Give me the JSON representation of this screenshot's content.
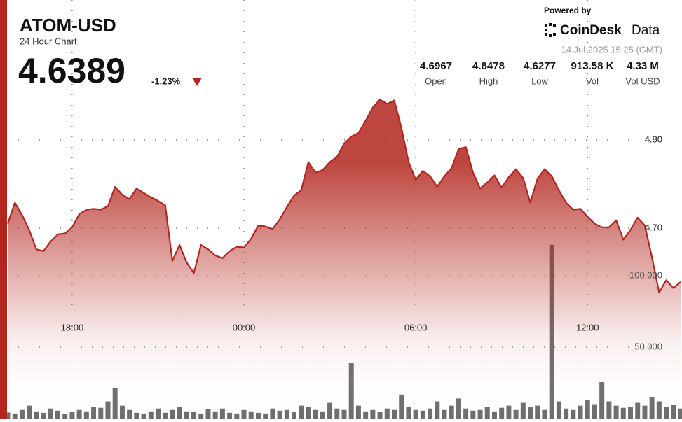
{
  "header": {
    "title": "ATOM-USD",
    "subtitle": "24 Hour Chart",
    "price": "4.6389",
    "change": "-1.23%",
    "powered": "Powered by",
    "brand": "CoinDesk",
    "brand_suffix": "Data",
    "timestamp": "14 Jul 2025 15:25 (GMT)"
  },
  "stats": [
    {
      "value": "4.6967",
      "label": "Open"
    },
    {
      "value": "4.8478",
      "label": "High"
    },
    {
      "value": "4.6277",
      "label": "Low"
    },
    {
      "value": "913.58 K",
      "label": "Vol"
    },
    {
      "value": "4.33 M",
      "label": "Vol USD"
    }
  ],
  "chart_data": {
    "type": "line",
    "x": [
      "15:45",
      "16:00",
      "16:15",
      "16:30",
      "16:45",
      "17:00",
      "17:15",
      "17:30",
      "17:45",
      "18:00",
      "18:15",
      "18:30",
      "18:45",
      "19:00",
      "19:15",
      "19:30",
      "19:45",
      "20:00",
      "20:15",
      "20:30",
      "20:45",
      "21:00",
      "21:15",
      "21:30",
      "21:45",
      "22:00",
      "22:15",
      "22:30",
      "22:45",
      "23:00",
      "23:15",
      "23:30",
      "23:45",
      "00:00",
      "00:15",
      "00:30",
      "00:45",
      "01:00",
      "01:15",
      "01:30",
      "01:45",
      "02:00",
      "02:15",
      "02:30",
      "02:45",
      "03:00",
      "03:15",
      "03:30",
      "03:45",
      "04:00",
      "04:15",
      "04:30",
      "04:45",
      "05:00",
      "05:15",
      "05:30",
      "05:45",
      "06:00",
      "06:15",
      "06:30",
      "06:45",
      "07:00",
      "07:15",
      "07:30",
      "07:45",
      "08:00",
      "08:15",
      "08:30",
      "08:45",
      "09:00",
      "09:15",
      "09:30",
      "09:45",
      "10:00",
      "10:15",
      "10:30",
      "10:45",
      "11:00",
      "11:15",
      "11:30",
      "11:45",
      "12:00",
      "12:15",
      "12:30",
      "12:45",
      "13:00",
      "13:15",
      "13:30",
      "13:45",
      "14:00",
      "14:15",
      "14:30",
      "14:45",
      "15:00",
      "15:15"
    ],
    "xticks": [
      "18:00",
      "00:00",
      "06:00",
      "12:00"
    ],
    "series": [
      {
        "type": "line",
        "color": "#b3261e",
        "values": [
          4.705,
          4.729,
          4.715,
          4.698,
          4.676,
          4.674,
          4.685,
          4.693,
          4.694,
          4.701,
          4.716,
          4.721,
          4.722,
          4.721,
          4.725,
          4.747,
          4.738,
          4.733,
          4.745,
          4.74,
          4.735,
          4.731,
          4.726,
          4.663,
          4.681,
          4.661,
          4.649,
          4.681,
          4.676,
          4.669,
          4.666,
          4.674,
          4.679,
          4.678,
          4.688,
          4.703,
          4.702,
          4.699,
          4.71,
          4.724,
          4.737,
          4.743,
          4.775,
          4.763,
          4.766,
          4.775,
          4.781,
          4.796,
          4.804,
          4.808,
          4.822,
          4.837,
          4.846,
          4.841,
          4.845,
          4.814,
          4.775,
          4.755,
          4.765,
          4.759,
          4.747,
          4.759,
          4.768,
          4.79,
          4.792,
          4.763,
          4.745,
          4.752,
          4.76,
          4.746,
          4.758,
          4.767,
          4.757,
          4.729,
          4.756,
          4.767,
          4.759,
          4.743,
          4.729,
          4.721,
          4.722,
          4.713,
          4.705,
          4.701,
          4.701,
          4.709,
          4.687,
          4.698,
          4.712,
          4.703,
          4.667,
          4.627,
          4.641,
          4.632,
          4.639
        ]
      },
      {
        "type": "bar",
        "axis": "y2",
        "color": "#4a4a4a",
        "values": [
          4200,
          3500,
          6000,
          9000,
          5000,
          4000,
          7000,
          5500,
          3000,
          4500,
          6000,
          5000,
          8000,
          7500,
          12000,
          21600,
          9000,
          6000,
          4000,
          3500,
          5000,
          7000,
          4000,
          6000,
          8000,
          5000,
          4500,
          3000,
          6500,
          5000,
          7000,
          4000,
          3500,
          6000,
          5000,
          4000,
          3500,
          7000,
          5500,
          6000,
          4500,
          9000,
          8000,
          6000,
          5000,
          11000,
          7000,
          6000,
          38700,
          9000,
          5000,
          6000,
          4500,
          7000,
          6000,
          16700,
          8000,
          6000,
          5500,
          7000,
          12000,
          6000,
          9000,
          14000,
          7000,
          5500,
          6000,
          8000,
          5000,
          7500,
          9000,
          6000,
          11000,
          8000,
          9000,
          6000,
          121600,
          12000,
          7000,
          6000,
          9000,
          13000,
          10000,
          25500,
          12000,
          9000,
          7500,
          8000,
          11000,
          9000,
          15200,
          12000,
          8000,
          9500,
          7000
        ]
      }
    ],
    "ylim": [
      4.484,
      4.959
    ],
    "yticks": [
      {
        "value": 4.7,
        "label": "4.70"
      },
      {
        "value": 4.8,
        "label": "4.80"
      }
    ],
    "y2lim": [
      0,
      293000
    ],
    "y2ticks": [
      {
        "value": 50000,
        "label": "50,000"
      },
      {
        "value": 100000,
        "label": "100,000"
      }
    ],
    "grid": true
  }
}
